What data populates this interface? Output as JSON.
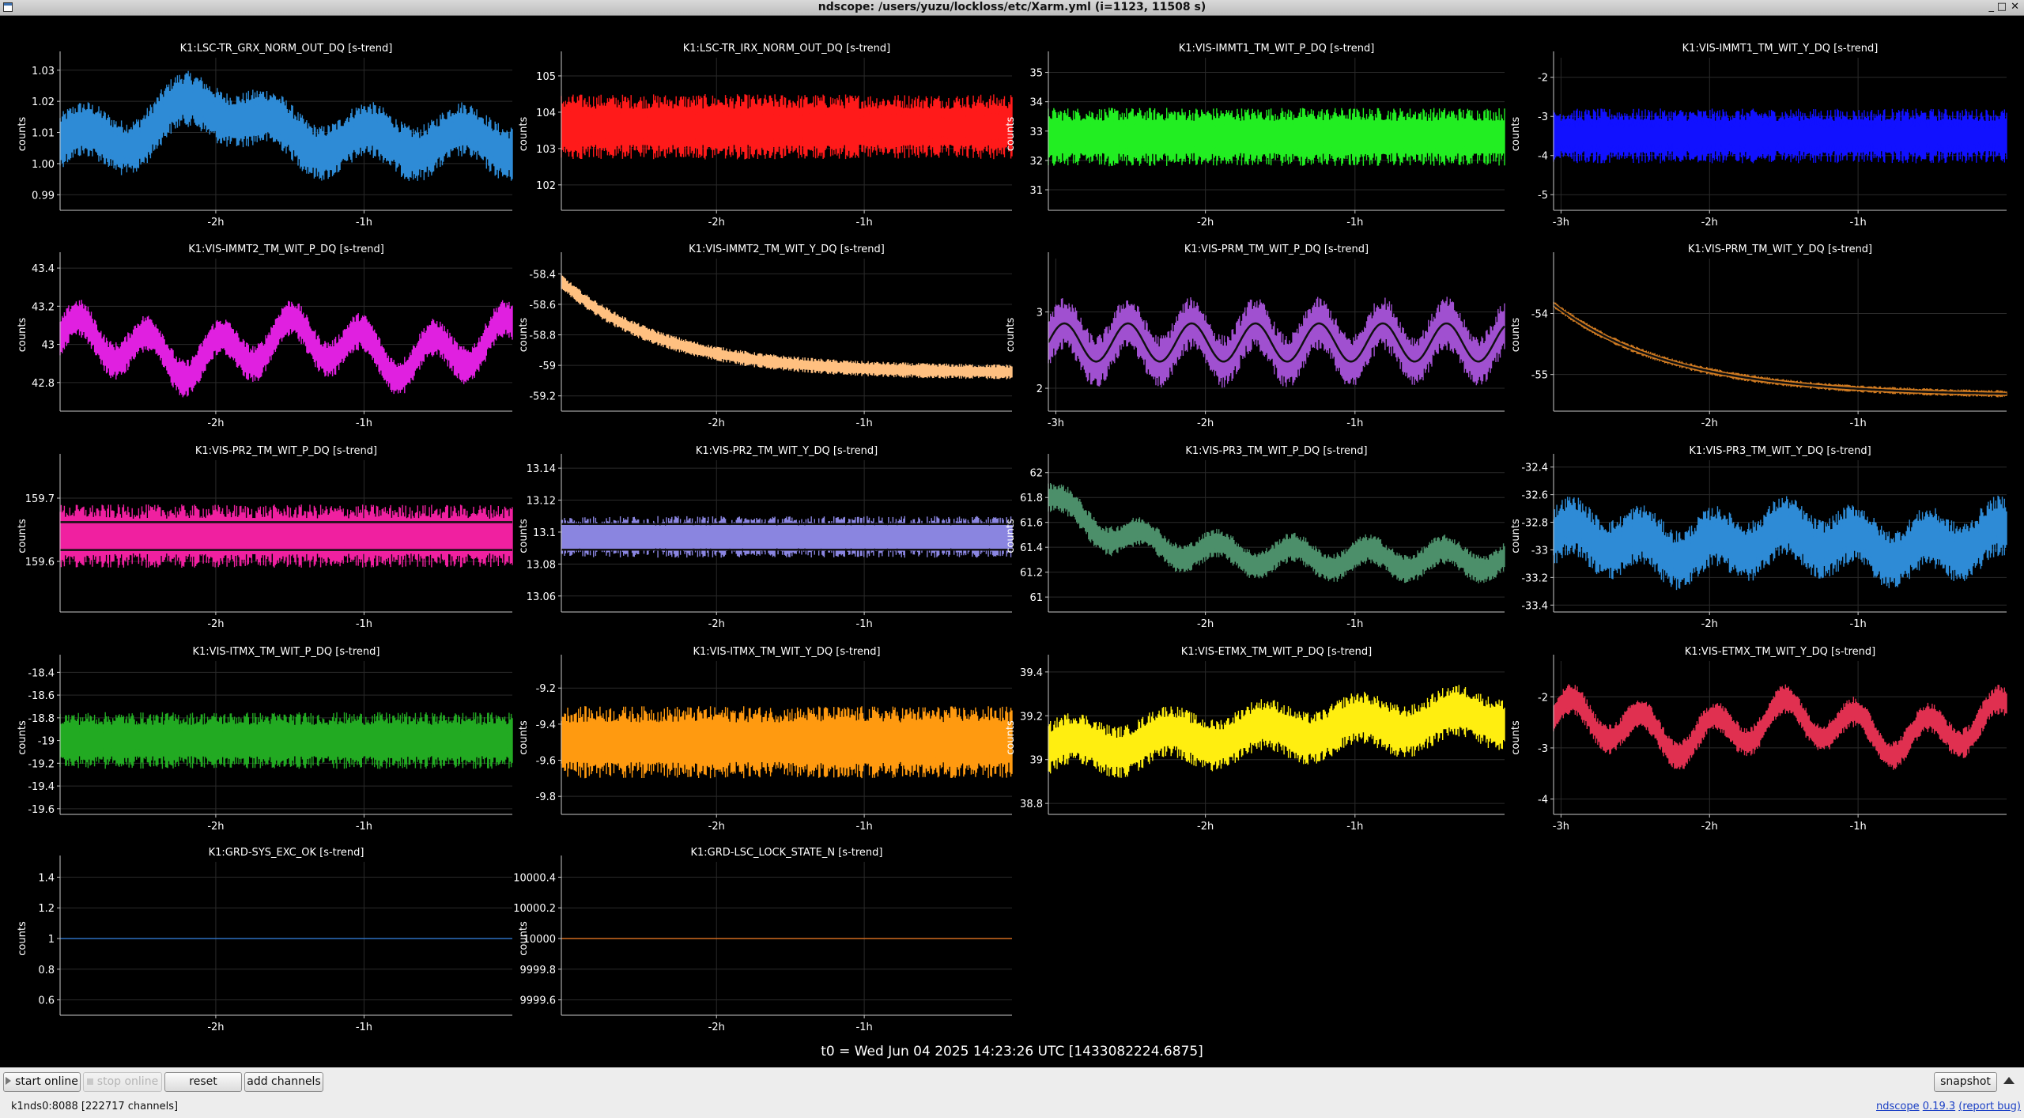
{
  "window": {
    "title": "ndscope: /users/yuzu/lockloss/etc/Xarm.yml (i=1123, 11508 s)",
    "controls": [
      "_",
      "□",
      "✕"
    ]
  },
  "colors": {
    "background": "#000000",
    "grid": "#2a2a2a",
    "axis": "#c8c8c8",
    "text": "#ffffff"
  },
  "y_axis_label": "counts",
  "plots": [
    {
      "title": "K1:LSC-TR_GRX_NORM_OUT_DQ [s-trend]",
      "color": "#2e8bd6",
      "yticks": [
        "1.03",
        "1.02",
        "1.01",
        "1.00",
        "0.99"
      ],
      "yrange": [
        0.985,
        1.034
      ],
      "xticks": [
        "-2h",
        "-1h"
      ],
      "xrange_h": [
        -3.05,
        0.0
      ],
      "trend": {
        "base": 1.007,
        "amp": 0.004,
        "hump": 0.012,
        "noise": 0.009,
        "kind": "hump"
      }
    },
    {
      "title": "K1:LSC-TR_IRX_NORM_OUT_DQ [s-trend]",
      "color": "#ff1a1a",
      "yticks": [
        "105",
        "104",
        "103",
        "102"
      ],
      "yrange": [
        101.3,
        105.5
      ],
      "xticks": [
        "-2h",
        "-1h"
      ],
      "xrange_h": [
        -3.05,
        0.0
      ],
      "trend": {
        "base": 103.6,
        "amp": 0.1,
        "hump": 0,
        "noise": 0.9,
        "kind": "noise"
      }
    },
    {
      "title": "K1:VIS-IMMT1_TM_WIT_P_DQ [s-trend]",
      "color": "#22ee22",
      "yticks": [
        "35",
        "34",
        "33",
        "32",
        "31"
      ],
      "yrange": [
        30.3,
        35.5
      ],
      "xticks": [
        "-2h",
        "-1h"
      ],
      "xrange_h": [
        -3.05,
        0.0
      ],
      "trend": {
        "base": 32.8,
        "amp": 0.1,
        "hump": 0,
        "noise": 1.0,
        "kind": "noise"
      }
    },
    {
      "title": "K1:VIS-IMMT1_TM_WIT_Y_DQ [s-trend]",
      "color": "#1111ff",
      "yticks": [
        "-2",
        "-3",
        "-4",
        "-5"
      ],
      "yrange": [
        -5.4,
        -1.5
      ],
      "xticks": [
        "-3h",
        "-2h",
        "-1h"
      ],
      "xrange_h": [
        -3.05,
        0.0
      ],
      "trend": {
        "base": -3.5,
        "amp": 0.05,
        "hump": 0,
        "noise": 0.7,
        "kind": "noise"
      }
    },
    {
      "title": "K1:VIS-IMMT2_TM_WIT_P_DQ [s-trend]",
      "color": "#e020e0",
      "yticks": [
        "43.4",
        "43.2",
        "43",
        "42.8"
      ],
      "yrange": [
        42.65,
        43.45
      ],
      "xticks": [
        "-2h",
        "-1h"
      ],
      "xrange_h": [
        -3.05,
        0.0
      ],
      "trend": {
        "base": 42.98,
        "amp": 0.1,
        "hump": 0,
        "noise": 0.1,
        "kind": "wave"
      }
    },
    {
      "title": "K1:VIS-IMMT2_TM_WIT_Y_DQ [s-trend]",
      "color": "#ffc080",
      "yticks": [
        "-58.4",
        "-58.6",
        "-58.8",
        "-59",
        "-59.2"
      ],
      "yrange": [
        -59.3,
        -58.3
      ],
      "xticks": [
        "-2h",
        "-1h"
      ],
      "xrange_h": [
        -3.05,
        0.0
      ],
      "trend": {
        "base": -59.05,
        "amp": 0.6,
        "hump": 0,
        "noise": 0.05,
        "kind": "decay"
      }
    },
    {
      "title": "K1:VIS-PRM_TM_WIT_P_DQ [s-trend]",
      "color": "#a050d0",
      "yticks": [
        "3",
        "2"
      ],
      "yrange": [
        1.7,
        3.7
      ],
      "xticks": [
        "-3h",
        "-2h",
        "-1h"
      ],
      "xrange_h": [
        -3.05,
        0.0
      ],
      "trend": {
        "base": 2.6,
        "amp": 0.25,
        "hump": 0,
        "noise": 0.35,
        "kind": "band"
      }
    },
    {
      "title": "K1:VIS-PRM_TM_WIT_Y_DQ [s-trend]",
      "color": "#d07a20",
      "yticks": [
        "-54",
        "-55"
      ],
      "yrange": [
        -55.6,
        -53.1
      ],
      "xticks": [
        "-2h",
        "-1h"
      ],
      "xrange_h": [
        -3.05,
        0.0
      ],
      "trend": {
        "base": -55.35,
        "amp": 1.5,
        "hump": 0,
        "noise": 0.06,
        "kind": "decayband"
      }
    },
    {
      "title": "K1:VIS-PR2_TM_WIT_P_DQ [s-trend]",
      "color": "#f020a0",
      "yticks": [
        "159.7",
        "159.6"
      ],
      "yrange": [
        159.52,
        159.76
      ],
      "xticks": [
        "-2h",
        "-1h"
      ],
      "xrange_h": [
        -3.05,
        0.0
      ],
      "trend": {
        "base": 159.64,
        "amp": 0.0,
        "hump": 0,
        "noise": 0.05,
        "kind": "bands2"
      }
    },
    {
      "title": "K1:VIS-PR2_TM_WIT_Y_DQ [s-trend]",
      "color": "#8a85e0",
      "yticks": [
        "13.14",
        "13.12",
        "13.1",
        "13.08",
        "13.06"
      ],
      "yrange": [
        13.05,
        13.145
      ],
      "xticks": [
        "-2h",
        "-1h"
      ],
      "xrange_h": [
        -3.05,
        0.0
      ],
      "trend": {
        "base": 13.097,
        "amp": 0.0,
        "hump": 0,
        "noise": 0.013,
        "kind": "bands3"
      }
    },
    {
      "title": "K1:VIS-PR3_TM_WIT_P_DQ [s-trend]",
      "color": "#4c8f6a",
      "yticks": [
        "62",
        "61.8",
        "61.6",
        "61.4",
        "61.2",
        "61"
      ],
      "yrange": [
        60.88,
        62.1
      ],
      "xticks": [
        "-2h",
        "-1h"
      ],
      "xrange_h": [
        -3.05,
        0.0
      ],
      "trend": {
        "base": 61.3,
        "amp": 0.5,
        "hump": 0,
        "noise": 0.12,
        "kind": "decaywave"
      }
    },
    {
      "title": "K1:VIS-PR3_TM_WIT_Y_DQ [s-trend]",
      "color": "#2e8bd6",
      "yticks": [
        "-32.4",
        "-32.6",
        "-32.8",
        "-33",
        "-33.2",
        "-33.4"
      ],
      "yrange": [
        -33.45,
        -32.35
      ],
      "xticks": [
        "-2h",
        "-1h"
      ],
      "xrange_h": [
        -3.05,
        0.0
      ],
      "trend": {
        "base": -32.95,
        "amp": 0.08,
        "hump": 0,
        "noise": 0.22,
        "kind": "wave"
      }
    },
    {
      "title": "K1:VIS-ITMX_TM_WIT_P_DQ [s-trend]",
      "color": "#22aa22",
      "yticks": [
        "-18.4",
        "-18.6",
        "-18.8",
        "-19",
        "-19.2",
        "-19.4",
        "-19.6"
      ],
      "yrange": [
        -19.65,
        -18.3
      ],
      "xticks": [
        "-2h",
        "-1h"
      ],
      "xrange_h": [
        -3.05,
        0.0
      ],
      "trend": {
        "base": -19.0,
        "amp": 0.05,
        "hump": 0,
        "noise": 0.25,
        "kind": "noise"
      }
    },
    {
      "title": "K1:VIS-ITMX_TM_WIT_Y_DQ [s-trend]",
      "color": "#ff9a10",
      "yticks": [
        "-9.2",
        "-9.4",
        "-9.6",
        "-9.8"
      ],
      "yrange": [
        -9.9,
        -9.05
      ],
      "xticks": [
        "-2h",
        "-1h"
      ],
      "xrange_h": [
        -3.05,
        0.0
      ],
      "trend": {
        "base": -9.5,
        "amp": 0.02,
        "hump": 0,
        "noise": 0.2,
        "kind": "noise"
      }
    },
    {
      "title": "K1:VIS-ETMX_TM_WIT_P_DQ [s-trend]",
      "color": "#ffee10",
      "yticks": [
        "39.4",
        "39.2",
        "39",
        "38.8"
      ],
      "yrange": [
        38.75,
        39.45
      ],
      "xticks": [
        "-2h",
        "-1h"
      ],
      "xrange_h": [
        -3.05,
        0.0
      ],
      "trend": {
        "base": 39.05,
        "amp": 0.15,
        "hump": 0,
        "noise": 0.12,
        "kind": "rise"
      }
    },
    {
      "title": "K1:VIS-ETMX_TM_WIT_Y_DQ [s-trend]",
      "color": "#e03050",
      "yticks": [
        "-2",
        "-3",
        "-4"
      ],
      "yrange": [
        -4.3,
        -1.3
      ],
      "xticks": [
        "-3h",
        "-2h",
        "-1h"
      ],
      "xrange_h": [
        -3.05,
        0.0
      ],
      "trend": {
        "base": -2.6,
        "amp": 0.35,
        "hump": 0,
        "noise": 0.3,
        "kind": "wave"
      }
    },
    {
      "title": "K1:GRD-SYS_EXC_OK [s-trend]",
      "color": "#2e6fc0",
      "yticks": [
        "1.4",
        "1.2",
        "1",
        "0.8",
        "0.6"
      ],
      "yrange": [
        0.5,
        1.5
      ],
      "xticks": [
        "-2h",
        "-1h"
      ],
      "xrange_h": [
        -3.05,
        0.0
      ],
      "trend": {
        "base": 1.0,
        "amp": 0,
        "hump": 0,
        "noise": 0,
        "kind": "flat"
      }
    },
    {
      "title": "K1:GRD-LSC_LOCK_STATE_N [s-trend]",
      "color": "#d06a20",
      "yticks": [
        "10000.4",
        "10000.2",
        "10000",
        "9999.8",
        "9999.6"
      ],
      "yrange": [
        9999.5,
        10000.5
      ],
      "xticks": [
        "-2h",
        "-1h"
      ],
      "xrange_h": [
        -3.05,
        0.0
      ],
      "trend": {
        "base": 10000.0,
        "amp": 0,
        "hump": 0,
        "noise": 0,
        "kind": "flat"
      }
    }
  ],
  "t0": "t0 = Wed Jun 04 2025 14:23:26 UTC [1433082224.6875]",
  "toolbar": {
    "start_online": "start online",
    "stop_online": "stop online",
    "reset": "reset",
    "add_channels": "add channels",
    "snapshot": "snapshot"
  },
  "status": {
    "server": "k1nds0:8088 [222717 channels]",
    "app": "ndscope",
    "version": "0.19.3",
    "report_bug": "(report bug)"
  }
}
